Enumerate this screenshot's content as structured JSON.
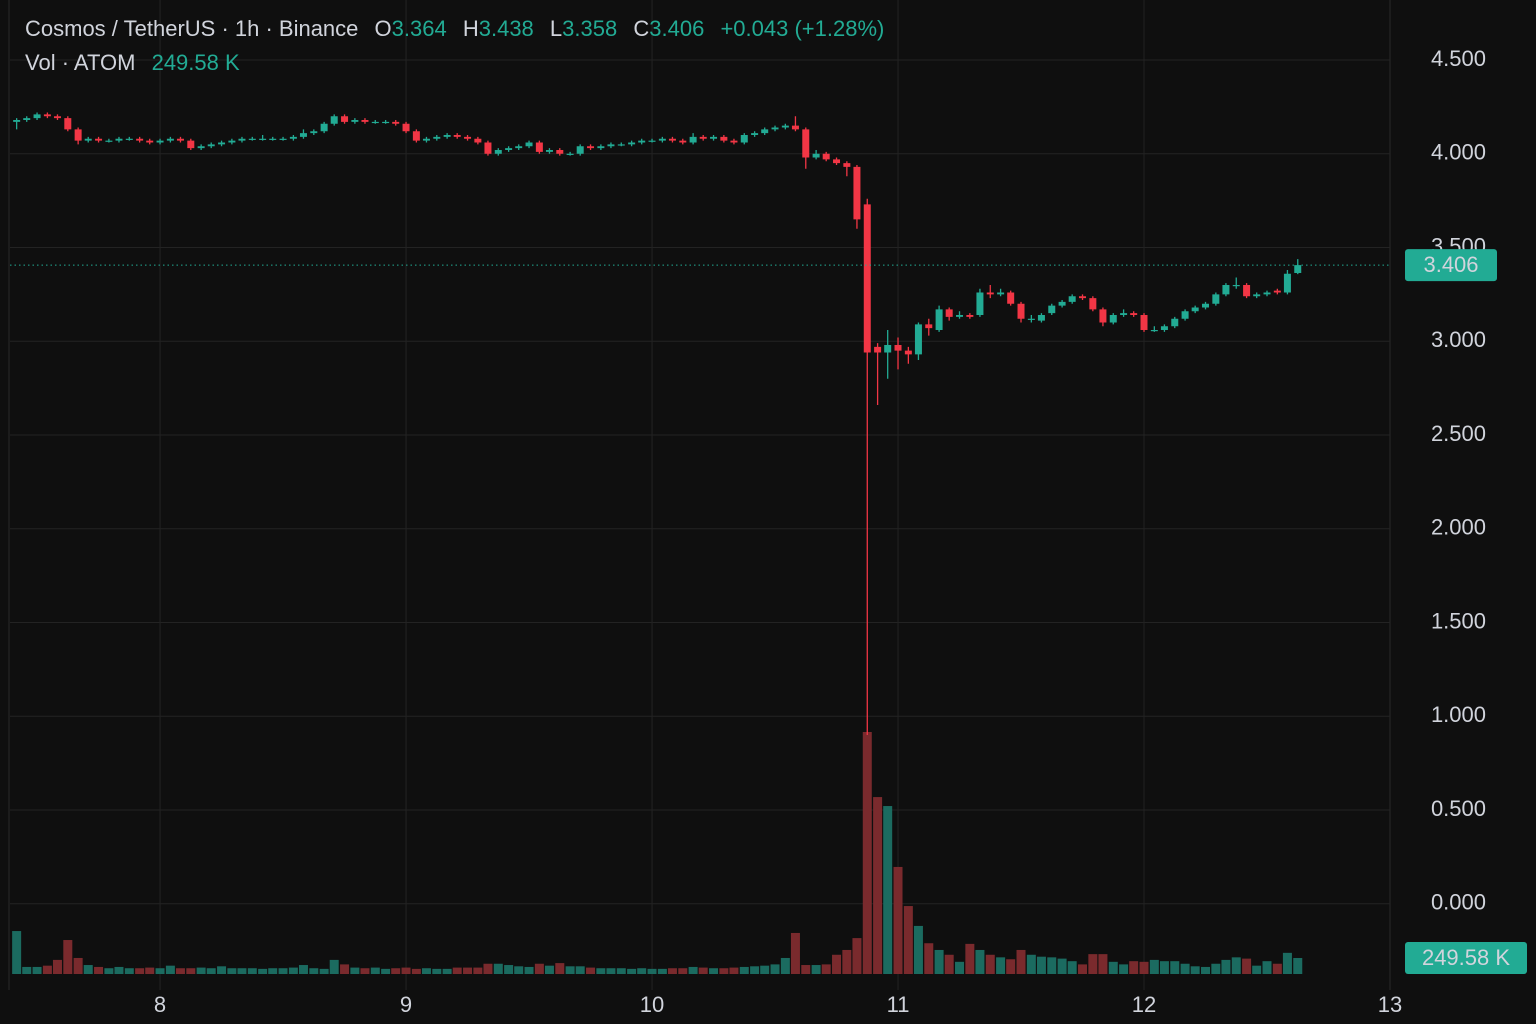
{
  "chart_data": {
    "type": "candlestick",
    "title": "Cosmos / TetherUS · 1h · Binance",
    "volume_title": "Vol · ATOM",
    "last_volume_label": "249.58 K",
    "open_label": "O",
    "high_label": "H",
    "low_label": "L",
    "close_label": "C",
    "change_label": "+0.043 (+1.28%)",
    "up_color": "#22ab94",
    "down_color": "#f23645",
    "volume_up_color": "#1b6b60",
    "volume_down_color": "#7a2a2d",
    "grid": true,
    "xlim": [
      7.39,
      13.0
    ],
    "xticks": [
      8,
      9,
      10,
      11,
      12,
      13
    ],
    "ylim": [
      -0.46,
      4.82
    ],
    "yticks": [
      {
        "value": 0,
        "label": "0.000"
      },
      {
        "value": 0.5,
        "label": "0.500"
      },
      {
        "value": 1,
        "label": "1.000"
      },
      {
        "value": 1.5,
        "label": "1.500"
      },
      {
        "value": 2,
        "label": "2.000"
      },
      {
        "value": 2.5,
        "label": "2.500"
      },
      {
        "value": 3,
        "label": "3.000"
      },
      {
        "value": 3.5,
        "label": "3.500"
      },
      {
        "value": 4,
        "label": "4.000"
      },
      {
        "value": 4.5,
        "label": "4.500"
      }
    ],
    "x": [
      7.417,
      7.458,
      7.5,
      7.542,
      7.583,
      7.625,
      7.667,
      7.708,
      7.75,
      7.792,
      7.833,
      7.875,
      7.917,
      7.958,
      8,
      8.042,
      8.083,
      8.125,
      8.167,
      8.208,
      8.25,
      8.292,
      8.333,
      8.375,
      8.417,
      8.458,
      8.5,
      8.542,
      8.583,
      8.625,
      8.667,
      8.708,
      8.75,
      8.792,
      8.833,
      8.875,
      8.917,
      8.958,
      9,
      9.042,
      9.083,
      9.125,
      9.167,
      9.208,
      9.25,
      9.292,
      9.333,
      9.375,
      9.417,
      9.458,
      9.5,
      9.542,
      9.583,
      9.625,
      9.667,
      9.708,
      9.75,
      9.792,
      9.833,
      9.875,
      9.917,
      9.958,
      10,
      10.042,
      10.083,
      10.125,
      10.167,
      10.208,
      10.25,
      10.292,
      10.333,
      10.375,
      10.417,
      10.458,
      10.5,
      10.542,
      10.583,
      10.625,
      10.667,
      10.708,
      10.75,
      10.792,
      10.833,
      10.875,
      10.917,
      10.958,
      11,
      11.042,
      11.083,
      11.125,
      11.167,
      11.208,
      11.25,
      11.292,
      11.333,
      11.375,
      11.417,
      11.458,
      11.5,
      11.542,
      11.583,
      11.625,
      11.667,
      11.708,
      11.75,
      11.792,
      11.833,
      11.875,
      11.917,
      11.958,
      12,
      12.042,
      12.083,
      12.125,
      12.167,
      12.208,
      12.25,
      12.292,
      12.333,
      12.375,
      12.417,
      12.458,
      12.5,
      12.542,
      12.583,
      12.625
    ],
    "open": [
      4.17,
      4.18,
      4.19,
      4.21,
      4.2,
      4.19,
      4.13,
      4.07,
      4.08,
      4.07,
      4.07,
      4.08,
      4.08,
      4.07,
      4.06,
      4.07,
      4.08,
      4.07,
      4.03,
      4.04,
      4.05,
      4.06,
      4.07,
      4.08,
      4.08,
      4.08,
      4.08,
      4.08,
      4.09,
      4.11,
      4.12,
      4.16,
      4.2,
      4.17,
      4.18,
      4.17,
      4.17,
      4.17,
      4.16,
      4.12,
      4.07,
      4.08,
      4.09,
      4.1,
      4.09,
      4.08,
      4.06,
      4.0,
      4.02,
      4.03,
      4.04,
      4.06,
      4.01,
      4.02,
      4.0,
      4.0,
      4.04,
      4.03,
      4.04,
      4.05,
      4.05,
      4.06,
      4.07,
      4.07,
      4.08,
      4.07,
      4.06,
      4.09,
      4.08,
      4.09,
      4.07,
      4.06,
      4.1,
      4.11,
      4.13,
      4.14,
      4.15,
      4.13,
      3.98,
      4.0,
      3.97,
      3.95,
      3.93,
      3.73,
      2.97,
      2.94,
      2.98,
      2.95,
      2.93,
      3.09,
      3.06,
      3.17,
      3.13,
      3.14,
      3.14,
      3.26,
      3.25,
      3.26,
      3.2,
      3.12,
      3.11,
      3.15,
      3.19,
      3.21,
      3.24,
      3.23,
      3.17,
      3.1,
      3.14,
      3.15,
      3.14,
      3.06,
      3.06,
      3.08,
      3.12,
      3.16,
      3.18,
      3.2,
      3.25,
      3.3,
      3.3,
      3.24,
      3.25,
      3.27,
      3.26,
      3.364
    ],
    "high": [
      4.19,
      4.2,
      4.22,
      4.22,
      4.21,
      4.2,
      4.14,
      4.09,
      4.09,
      4.08,
      4.09,
      4.09,
      4.09,
      4.08,
      4.08,
      4.09,
      4.09,
      4.08,
      4.05,
      4.06,
      4.07,
      4.08,
      4.09,
      4.09,
      4.1,
      4.09,
      4.09,
      4.1,
      4.13,
      4.13,
      4.17,
      4.21,
      4.21,
      4.19,
      4.19,
      4.18,
      4.18,
      4.18,
      4.17,
      4.13,
      4.09,
      4.1,
      4.11,
      4.11,
      4.1,
      4.09,
      4.07,
      4.03,
      4.04,
      4.05,
      4.07,
      4.07,
      4.03,
      4.03,
      4.01,
      4.05,
      4.05,
      4.05,
      4.06,
      4.06,
      4.07,
      4.08,
      4.08,
      4.09,
      4.09,
      4.08,
      4.11,
      4.1,
      4.1,
      4.1,
      4.08,
      4.11,
      4.12,
      4.14,
      4.15,
      4.16,
      4.2,
      4.14,
      4.02,
      4.01,
      3.98,
      3.96,
      3.94,
      3.76,
      2.99,
      3.06,
      3.02,
      2.97,
      3.1,
      3.12,
      3.19,
      3.18,
      3.16,
      3.15,
      3.28,
      3.3,
      3.28,
      3.27,
      3.21,
      3.14,
      3.15,
      3.2,
      3.22,
      3.25,
      3.25,
      3.24,
      3.18,
      3.15,
      3.17,
      3.16,
      3.15,
      3.08,
      3.09,
      3.13,
      3.17,
      3.19,
      3.21,
      3.26,
      3.31,
      3.34,
      3.31,
      3.26,
      3.27,
      3.28,
      3.38,
      3.438
    ],
    "low": [
      4.13,
      4.17,
      4.18,
      4.19,
      4.18,
      4.12,
      4.05,
      4.06,
      4.06,
      4.06,
      4.06,
      4.07,
      4.06,
      4.05,
      4.05,
      4.06,
      4.06,
      4.02,
      4.02,
      4.03,
      4.04,
      4.05,
      4.06,
      4.07,
      4.07,
      4.07,
      4.07,
      4.07,
      4.08,
      4.1,
      4.11,
      4.15,
      4.16,
      4.16,
      4.16,
      4.16,
      4.16,
      4.15,
      4.11,
      4.06,
      4.06,
      4.07,
      4.08,
      4.08,
      4.07,
      4.05,
      3.99,
      3.99,
      4.01,
      4.02,
      4.03,
      4.0,
      4.0,
      3.99,
      3.99,
      3.99,
      4.02,
      4.02,
      4.03,
      4.04,
      4.04,
      4.05,
      4.06,
      4.06,
      4.06,
      4.05,
      4.05,
      4.07,
      4.07,
      4.06,
      4.05,
      4.05,
      4.09,
      4.1,
      4.12,
      4.13,
      4.12,
      3.92,
      3.97,
      3.96,
      3.94,
      3.88,
      3.6,
      0.9,
      2.66,
      2.8,
      2.85,
      2.88,
      2.9,
      3.03,
      3.05,
      3.11,
      3.12,
      3.12,
      3.13,
      3.23,
      3.24,
      3.19,
      3.1,
      3.1,
      3.1,
      3.14,
      3.18,
      3.2,
      3.22,
      3.16,
      3.08,
      3.09,
      3.13,
      3.13,
      3.05,
      3.05,
      3.05,
      3.07,
      3.11,
      3.15,
      3.17,
      3.19,
      3.24,
      3.28,
      3.23,
      3.23,
      3.24,
      3.25,
      3.25,
      3.358
    ],
    "close": [
      4.18,
      4.19,
      4.21,
      4.2,
      4.19,
      4.13,
      4.07,
      4.08,
      4.07,
      4.07,
      4.08,
      4.08,
      4.07,
      4.06,
      4.07,
      4.08,
      4.07,
      4.03,
      4.04,
      4.05,
      4.06,
      4.07,
      4.08,
      4.08,
      4.08,
      4.08,
      4.08,
      4.09,
      4.11,
      4.12,
      4.16,
      4.2,
      4.17,
      4.18,
      4.17,
      4.17,
      4.17,
      4.16,
      4.12,
      4.07,
      4.08,
      4.09,
      4.1,
      4.09,
      4.08,
      4.06,
      4.0,
      4.02,
      4.03,
      4.04,
      4.06,
      4.01,
      4.02,
      4.0,
      4.0,
      4.04,
      4.03,
      4.04,
      4.05,
      4.05,
      4.06,
      4.07,
      4.07,
      4.08,
      4.07,
      4.06,
      4.09,
      4.08,
      4.09,
      4.07,
      4.06,
      4.1,
      4.11,
      4.13,
      4.14,
      4.15,
      4.13,
      3.98,
      4.0,
      3.97,
      3.95,
      3.93,
      3.65,
      2.94,
      2.94,
      2.98,
      2.95,
      2.93,
      3.09,
      3.07,
      3.17,
      3.13,
      3.14,
      3.13,
      3.26,
      3.25,
      3.26,
      3.2,
      3.12,
      3.12,
      3.14,
      3.19,
      3.21,
      3.24,
      3.23,
      3.17,
      3.1,
      3.14,
      3.15,
      3.14,
      3.06,
      3.06,
      3.08,
      3.12,
      3.16,
      3.18,
      3.2,
      3.25,
      3.3,
      3.3,
      3.24,
      3.25,
      3.26,
      3.26,
      3.36,
      3.406
    ],
    "volume": [
      670,
      110,
      110,
      130,
      220,
      530,
      250,
      140,
      110,
      90,
      110,
      90,
      90,
      100,
      90,
      130,
      90,
      90,
      100,
      90,
      120,
      90,
      90,
      90,
      80,
      90,
      90,
      100,
      140,
      90,
      80,
      220,
      150,
      100,
      90,
      100,
      80,
      90,
      100,
      80,
      90,
      80,
      80,
      100,
      100,
      100,
      160,
      160,
      140,
      120,
      110,
      160,
      130,
      170,
      120,
      120,
      100,
      90,
      90,
      90,
      80,
      90,
      80,
      80,
      90,
      90,
      110,
      100,
      90,
      90,
      100,
      110,
      120,
      130,
      150,
      250,
      640,
      140,
      140,
      150,
      300,
      375,
      560,
      3775,
      2760,
      2620,
      1670,
      1060,
      750,
      480,
      375,
      300,
      190,
      470,
      375,
      300,
      260,
      230,
      375,
      300,
      270,
      260,
      240,
      200,
      150,
      310,
      310,
      190,
      150,
      200,
      190,
      220,
      200,
      200,
      160,
      120,
      110,
      160,
      220,
      260,
      240,
      130,
      200,
      160,
      330,
      249.58
    ]
  }
}
